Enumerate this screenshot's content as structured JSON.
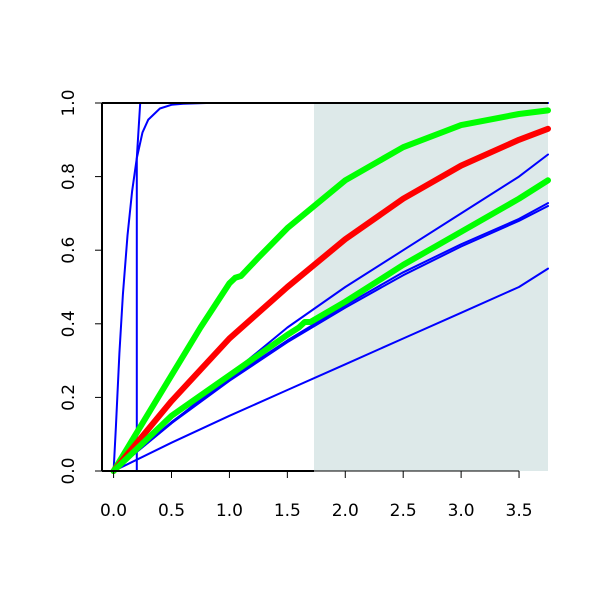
{
  "chart_data": {
    "type": "line",
    "title": "",
    "xlabel": "",
    "ylabel": "",
    "xlim": [
      -0.1,
      3.75
    ],
    "ylim": [
      0,
      1
    ],
    "x_ticks": [
      "0.0",
      "0.5",
      "1.0",
      "1.5",
      "2.0",
      "2.5",
      "3.0",
      "3.5"
    ],
    "y_ticks": [
      "0.0",
      "0.2",
      "0.4",
      "0.6",
      "0.8",
      "1.0"
    ],
    "x_tick_values": [
      0,
      0.5,
      1,
      1.5,
      2,
      2.5,
      3,
      3.5
    ],
    "y_tick_values": [
      0,
      0.2,
      0.4,
      0.6,
      0.8,
      1.0
    ],
    "shaded_region": {
      "x": [
        1.73,
        3.75
      ],
      "color": "#dde9e9"
    },
    "grid": false,
    "series": [
      {
        "color": "#0000ff",
        "width": "thin",
        "x": [
          0,
          0.02,
          0.05,
          0.08,
          0.12,
          0.16,
          0.2,
          0.25,
          0.3,
          0.4,
          0.5,
          0.6,
          0.8,
          1.2,
          3.75
        ],
        "y": [
          0,
          0.12,
          0.32,
          0.48,
          0.64,
          0.76,
          0.85,
          0.92,
          0.955,
          0.985,
          0.995,
          0.998,
          1.0,
          1.0,
          1.0
        ]
      },
      {
        "color": "#0000ff",
        "width": "thin",
        "x": [
          0,
          0.2,
          0.2,
          0.23,
          0.6,
          3.75
        ],
        "y": [
          0,
          0,
          0.85,
          1.0,
          1.0,
          1.0
        ]
      },
      {
        "color": "#0000ff",
        "width": "thin",
        "x": [
          0,
          0.5,
          1.0,
          1.5,
          2.0,
          2.5,
          3.0,
          3.5,
          3.75
        ],
        "y": [
          0,
          0.13,
          0.26,
          0.39,
          0.5,
          0.6,
          0.7,
          0.8,
          0.86
        ]
      },
      {
        "color": "#0000ff",
        "width": "thin",
        "x": [
          0,
          0.5,
          1.0,
          1.5,
          2.0,
          2.5,
          3.0,
          3.5,
          3.75
        ],
        "y": [
          0,
          0.133,
          0.25,
          0.355,
          0.45,
          0.54,
          0.616,
          0.685,
          0.728
        ]
      },
      {
        "color": "#0000ff",
        "width": "thin",
        "x": [
          0,
          0.5,
          1.0,
          1.5,
          2.0,
          2.5,
          3.0,
          3.5,
          3.75
        ],
        "y": [
          0,
          0.13,
          0.245,
          0.35,
          0.444,
          0.532,
          0.61,
          0.68,
          0.72
        ]
      },
      {
        "color": "#0000ff",
        "width": "thin",
        "x": [
          0,
          0.5,
          1.0,
          1.5,
          2.0,
          2.5,
          3.0,
          3.5,
          3.75
        ],
        "y": [
          0,
          0.077,
          0.15,
          0.22,
          0.29,
          0.36,
          0.43,
          0.5,
          0.55
        ]
      },
      {
        "color": "#00ff00",
        "width": "thick",
        "x": [
          0,
          0.25,
          0.5,
          0.75,
          1.0,
          1.05,
          1.1,
          1.25,
          1.5,
          2.0,
          2.5,
          3.0,
          3.5,
          3.75
        ],
        "y": [
          0,
          0.13,
          0.26,
          0.39,
          0.51,
          0.525,
          0.53,
          0.58,
          0.66,
          0.79,
          0.88,
          0.94,
          0.97,
          0.98
        ]
      },
      {
        "color": "#ff0000",
        "width": "thick",
        "x": [
          0,
          0.5,
          1.0,
          1.5,
          2.0,
          2.5,
          3.0,
          3.5,
          3.75
        ],
        "y": [
          0,
          0.19,
          0.36,
          0.5,
          0.63,
          0.74,
          0.83,
          0.9,
          0.93
        ]
      },
      {
        "color": "#00ff00",
        "width": "thick",
        "x": [
          0,
          0.5,
          1.0,
          1.5,
          1.6,
          1.65,
          1.7,
          2.0,
          2.5,
          3.0,
          3.5,
          3.75
        ],
        "y": [
          0,
          0.15,
          0.26,
          0.37,
          0.39,
          0.405,
          0.405,
          0.46,
          0.56,
          0.65,
          0.74,
          0.79
        ]
      }
    ]
  }
}
